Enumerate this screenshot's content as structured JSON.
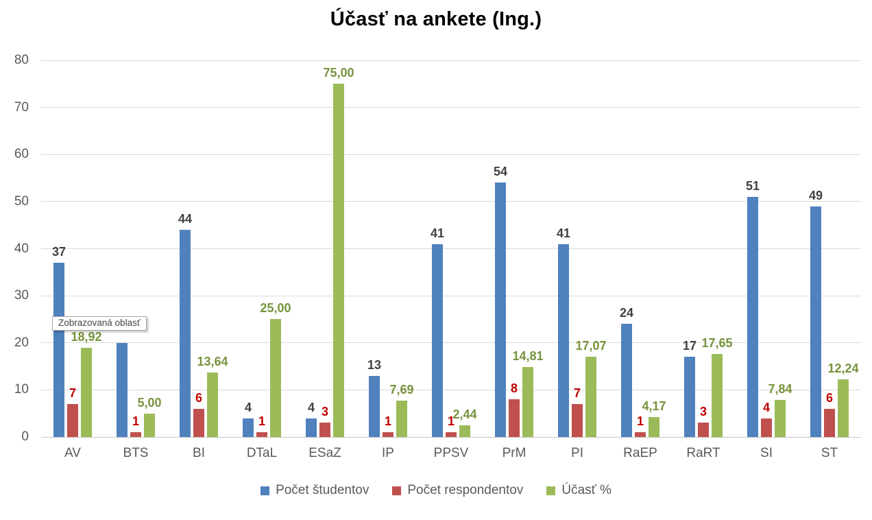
{
  "title": "Účasť na ankete (Ing.)",
  "tooltip": {
    "text": "Zobrazovaná oblasť"
  },
  "chart_data": {
    "type": "bar",
    "title": "Účasť na ankete (Ing.)",
    "categories": [
      "AV",
      "BTS",
      "BI",
      "DTaL",
      "ESaZ",
      "IP",
      "PPSV",
      "PrM",
      "PI",
      "RaEP",
      "RaRT",
      "SI",
      "ST"
    ],
    "series": [
      {
        "name": "Počet študentov",
        "color": "#4F81BD",
        "label_color": "#404040",
        "values": [
          37,
          20,
          44,
          4,
          4,
          13,
          41,
          54,
          41,
          24,
          17,
          51,
          49
        ],
        "labels": [
          "37",
          "",
          "44",
          "4",
          "4",
          "13",
          "41",
          "54",
          "41",
          "24",
          "17",
          "51",
          "49"
        ]
      },
      {
        "name": "Počet respondentov",
        "color": "#C0504D",
        "label_color": "#C00000",
        "values": [
          7,
          1,
          6,
          1,
          3,
          1,
          1,
          8,
          7,
          1,
          3,
          4,
          6
        ],
        "labels": [
          "7",
          "1",
          "6",
          "1",
          "3",
          "1",
          "1",
          "8",
          "7",
          "1",
          "3",
          "4",
          "6"
        ]
      },
      {
        "name": "Účasť %",
        "color": "#9BBB59",
        "label_color": "#76933C",
        "values": [
          18.92,
          5.0,
          13.64,
          25.0,
          75.0,
          7.69,
          2.44,
          14.81,
          17.07,
          4.17,
          17.65,
          7.84,
          12.24
        ],
        "labels": [
          "18,92",
          "5,00",
          "13,64",
          "25,00",
          "75,00",
          "7,69",
          "2,44",
          "14,81",
          "17,07",
          "4,17",
          "17,65",
          "7,84",
          "12,24"
        ]
      }
    ],
    "y_axis": {
      "min": 0,
      "max": 80,
      "step": 10,
      "tick_labels": [
        "0",
        "10",
        "20",
        "30",
        "40",
        "50",
        "60",
        "70",
        "80"
      ]
    },
    "grid": true,
    "legend": {
      "position": "bottom",
      "entries": [
        {
          "label": "Počet študentov",
          "color": "#4F81BD"
        },
        {
          "label": "Počet respondentov",
          "color": "#C0504D"
        },
        {
          "label": "Účasť %",
          "color": "#9BBB59"
        }
      ]
    }
  }
}
